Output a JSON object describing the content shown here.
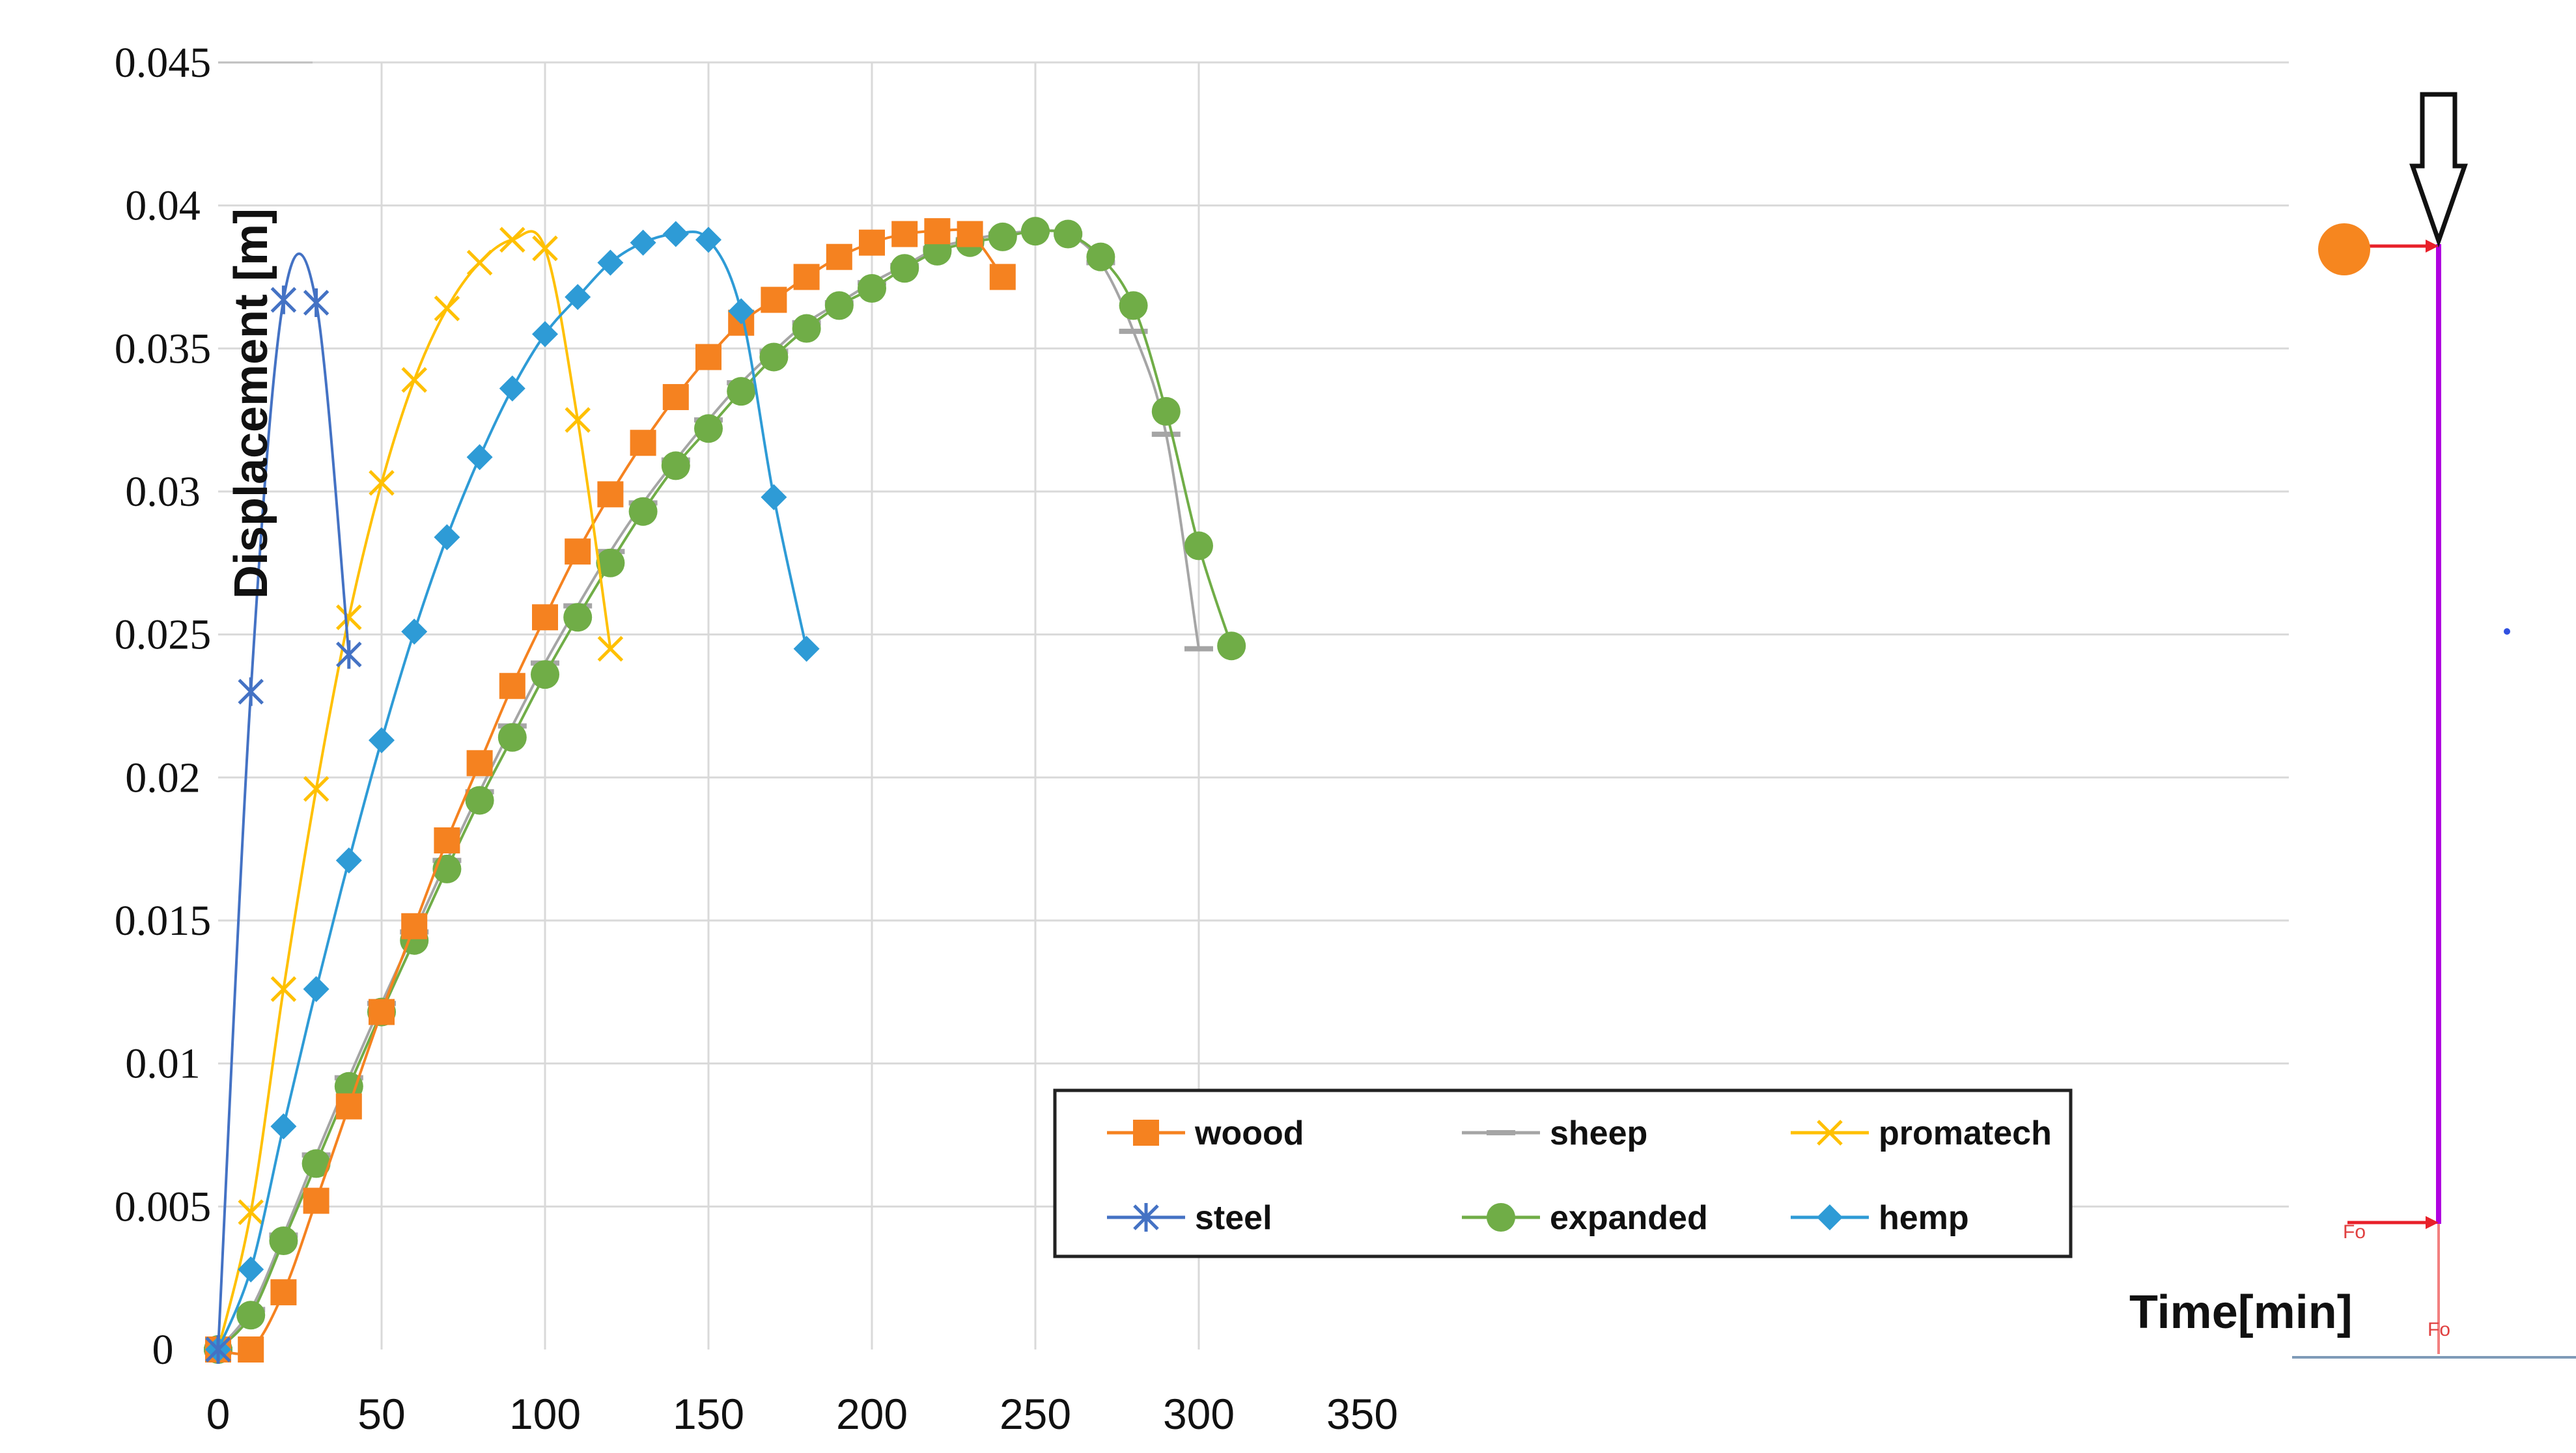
{
  "chart_data": {
    "type": "line",
    "xlabel": "Time[min]",
    "ylabel": "Displacement [m]",
    "xlim": [
      0,
      350
    ],
    "ylim": [
      0,
      0.045
    ],
    "x_ticks": [
      "0",
      "50",
      "100",
      "150",
      "200",
      "250",
      "300",
      "350"
    ],
    "y_ticks": [
      "0",
      "0.005",
      "0.01",
      "0.015",
      "0.02",
      "0.025",
      "0.03",
      "0.035",
      "0.04",
      "0.045"
    ],
    "grid": true,
    "legend_position": "bottom-right",
    "series": [
      {
        "name": "woood",
        "color": "#F58220",
        "marker": "square",
        "x": [
          0,
          10,
          20,
          30,
          40,
          50,
          60,
          70,
          80,
          90,
          100,
          110,
          120,
          130,
          140,
          150,
          160,
          170,
          180,
          190,
          200,
          210,
          220,
          230,
          240
        ],
        "y": [
          0,
          0,
          0.002,
          0.0052,
          0.0085,
          0.0118,
          0.0148,
          0.0178,
          0.0205,
          0.0232,
          0.0256,
          0.0279,
          0.0299,
          0.0317,
          0.0333,
          0.0347,
          0.0359,
          0.0367,
          0.0375,
          0.0382,
          0.0387,
          0.039,
          0.0391,
          0.039,
          0.0375
        ]
      },
      {
        "name": "sheep",
        "color": "#A5A5A5",
        "marker": "dash",
        "x": [
          0,
          10,
          20,
          30,
          40,
          50,
          60,
          70,
          80,
          90,
          100,
          110,
          120,
          130,
          140,
          150,
          160,
          170,
          180,
          190,
          200,
          210,
          220,
          230,
          240,
          250,
          260,
          270,
          280,
          290,
          300
        ],
        "y": [
          0,
          0.0014,
          0.004,
          0.0068,
          0.0095,
          0.0121,
          0.0146,
          0.0171,
          0.0195,
          0.0218,
          0.024,
          0.026,
          0.0279,
          0.0296,
          0.0311,
          0.0325,
          0.0338,
          0.0349,
          0.0359,
          0.0366,
          0.0373,
          0.0379,
          0.0385,
          0.0388,
          0.039,
          0.0391,
          0.039,
          0.038,
          0.0356,
          0.032,
          0.0245
        ]
      },
      {
        "name": "promatech",
        "color": "#FFC000",
        "marker": "x",
        "x": [
          0,
          10,
          20,
          30,
          40,
          50,
          60,
          70,
          80,
          90,
          100,
          110,
          120
        ],
        "y": [
          0,
          0.0048,
          0.0126,
          0.0196,
          0.0256,
          0.0303,
          0.0339,
          0.0364,
          0.038,
          0.0388,
          0.0385,
          0.0325,
          0.0245
        ]
      },
      {
        "name": "steel",
        "color": "#4472C4",
        "marker": "asterisk",
        "x": [
          0,
          10,
          20,
          30,
          40
        ],
        "y": [
          0,
          0.023,
          0.0367,
          0.0366,
          0.0243
        ]
      },
      {
        "name": "expanded",
        "color": "#70AD47",
        "marker": "circle",
        "x": [
          0,
          10,
          20,
          30,
          40,
          50,
          60,
          70,
          80,
          90,
          100,
          110,
          120,
          130,
          140,
          150,
          160,
          170,
          180,
          190,
          200,
          210,
          220,
          230,
          240,
          250,
          260,
          270,
          280,
          290,
          300,
          310
        ],
        "y": [
          0,
          0.0012,
          0.0038,
          0.0065,
          0.0092,
          0.0118,
          0.0143,
          0.0168,
          0.0192,
          0.0214,
          0.0236,
          0.0256,
          0.0275,
          0.0293,
          0.0309,
          0.0322,
          0.0335,
          0.0347,
          0.0357,
          0.0365,
          0.0371,
          0.0378,
          0.0384,
          0.0387,
          0.0389,
          0.0391,
          0.039,
          0.0382,
          0.0365,
          0.0328,
          0.0281,
          0.0246
        ]
      },
      {
        "name": "hemp",
        "color": "#2E9BD6",
        "marker": "diamond",
        "x": [
          0,
          10,
          20,
          30,
          40,
          50,
          60,
          70,
          80,
          90,
          100,
          110,
          120,
          130,
          140,
          150,
          160,
          170,
          180
        ],
        "y": [
          0,
          0.0028,
          0.0078,
          0.0126,
          0.0171,
          0.0213,
          0.0251,
          0.0284,
          0.0312,
          0.0336,
          0.0355,
          0.0368,
          0.038,
          0.0387,
          0.039,
          0.0388,
          0.0363,
          0.0298,
          0.0245
        ]
      }
    ],
    "annotations": [
      "Fo",
      "Fo"
    ]
  }
}
